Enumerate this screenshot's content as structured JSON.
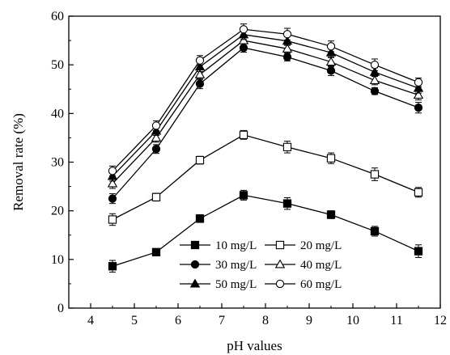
{
  "chart_data": {
    "type": "line",
    "xlabel": "pH values",
    "ylabel": "Removal rate (%)",
    "xlim": [
      3.5,
      12
    ],
    "ylim": [
      0,
      60
    ],
    "x_ticks": [
      "4",
      "5",
      "6",
      "7",
      "8",
      "9",
      "10",
      "11",
      "12"
    ],
    "y_ticks": [
      "0",
      "10",
      "20",
      "30",
      "40",
      "50",
      "60"
    ],
    "x": [
      4.5,
      5.5,
      6.5,
      7.5,
      8.5,
      9.5,
      10.5,
      11.5
    ],
    "grid": false,
    "legend_position": "bottom-right",
    "series": [
      {
        "name": "10 mg/L",
        "marker": "filled-square",
        "values": [
          8.6,
          11.5,
          18.4,
          23.2,
          21.5,
          19.2,
          15.8,
          11.7
        ],
        "errors": [
          1.2,
          0.6,
          0.8,
          1.0,
          1.2,
          0.8,
          1.0,
          1.3
        ]
      },
      {
        "name": "20 mg/L",
        "marker": "open-square",
        "values": [
          18.2,
          22.8,
          30.4,
          35.6,
          33.1,
          30.8,
          27.5,
          23.8
        ],
        "errors": [
          1.2,
          0.8,
          0.8,
          0.9,
          1.2,
          1.1,
          1.3,
          1.0
        ]
      },
      {
        "name": "30 mg/L",
        "marker": "filled-circle",
        "values": [
          22.5,
          32.7,
          46.1,
          53.5,
          51.6,
          48.8,
          44.6,
          41.2
        ],
        "errors": [
          1.0,
          0.9,
          1.0,
          0.9,
          0.8,
          1.0,
          0.7,
          1.1
        ]
      },
      {
        "name": "40 mg/L",
        "marker": "open-triangle",
        "values": [
          25.6,
          35.0,
          48.0,
          55.0,
          53.3,
          50.6,
          46.8,
          43.8
        ],
        "errors": [
          1.0,
          0.9,
          1.0,
          1.0,
          0.9,
          1.0,
          0.9,
          1.0
        ]
      },
      {
        "name": "50 mg/L",
        "marker": "filled-triangle",
        "values": [
          27.1,
          36.4,
          49.6,
          56.2,
          54.9,
          52.5,
          48.5,
          45.2
        ],
        "errors": [
          1.0,
          0.9,
          1.0,
          1.0,
          0.9,
          1.0,
          0.9,
          1.0
        ]
      },
      {
        "name": "60 mg/L",
        "marker": "open-circle",
        "values": [
          28.2,
          37.5,
          50.9,
          57.3,
          56.3,
          53.8,
          50.0,
          46.4
        ],
        "errors": [
          1.0,
          1.0,
          1.0,
          1.1,
          1.2,
          1.1,
          1.2,
          0.9
        ]
      }
    ]
  }
}
